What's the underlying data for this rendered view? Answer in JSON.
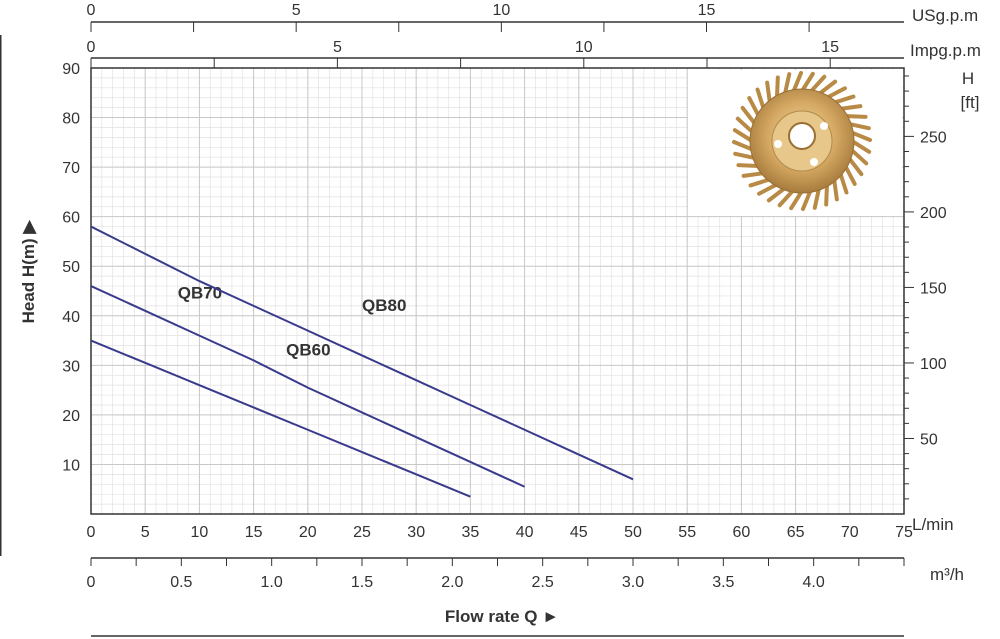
{
  "chart_data": {
    "type": "line",
    "x_axis": {
      "unit": "L/min",
      "range": [
        0,
        75
      ],
      "ticks": [
        0,
        5,
        10,
        15,
        20,
        25,
        30,
        35,
        40,
        45,
        50,
        55,
        60,
        65,
        70,
        75
      ]
    },
    "y_axis": {
      "label": "Head H(m)",
      "range": [
        0,
        90
      ],
      "ticks": [
        10,
        20,
        30,
        40,
        50,
        60,
        70,
        80,
        90
      ]
    },
    "secondary_y_axis": {
      "unit_top": "H",
      "unit_bottom": "[ft]",
      "ticks": [
        50,
        100,
        150,
        200,
        250
      ]
    },
    "usgpm_axis": {
      "unit": "USg.p.m",
      "ticks": [
        0,
        5,
        10,
        15
      ]
    },
    "impgpm_axis": {
      "unit": "Impg.p.m",
      "ticks": [
        0,
        5,
        10,
        15
      ]
    },
    "m3h_axis": {
      "unit": "m³/h",
      "ticks": [
        "0",
        "0.5",
        "1.0",
        "1.5",
        "2.0",
        "2.5",
        "3.0",
        "3.5",
        "4.0"
      ]
    },
    "flow_title": "Flow rate Q",
    "grid": true,
    "series": [
      {
        "name": "QB60",
        "x": [
          0,
          5,
          10,
          15,
          20,
          25,
          30,
          35
        ],
        "y": [
          35,
          30.5,
          26,
          21.5,
          17,
          12.5,
          8,
          3.5
        ],
        "color": "#3a3a8c"
      },
      {
        "name": "QB70",
        "x": [
          0,
          5,
          10,
          15,
          20,
          25,
          30,
          35,
          40
        ],
        "y": [
          46,
          41,
          36,
          31,
          25.5,
          20.5,
          15.5,
          10.5,
          5.5
        ],
        "color": "#3a3a8c"
      },
      {
        "name": "QB80",
        "x": [
          0,
          5,
          10,
          15,
          20,
          25,
          30,
          35,
          40,
          45,
          50
        ],
        "y": [
          58,
          52.5,
          47,
          42,
          37,
          32,
          27,
          22,
          17,
          12,
          7
        ],
        "color": "#3a3a8c"
      }
    ]
  }
}
